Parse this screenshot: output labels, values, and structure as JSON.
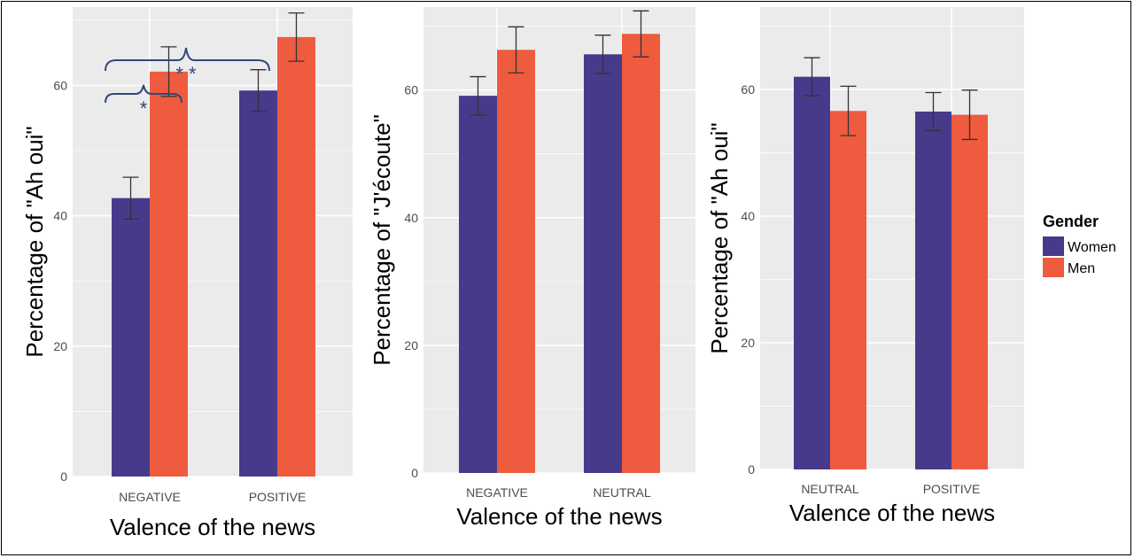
{
  "colors": {
    "women": "#473a8b",
    "men": "#ee5b3f",
    "panel_bg": "#ebebeb",
    "grid": "#ffffff",
    "bracket": "#2e4a7b",
    "text": "#4d4d4d"
  },
  "legend": {
    "title": "Gender",
    "items": [
      {
        "label": "Women",
        "color": "#473a8b"
      },
      {
        "label": "Men",
        "color": "#ee5b3f"
      }
    ]
  },
  "chart_data": [
    {
      "type": "bar",
      "categories": [
        "NEGATIVE",
        "POSITIVE"
      ],
      "series": [
        {
          "name": "Women",
          "values": [
            42.7,
            59.2
          ],
          "err": [
            3.2,
            3.2
          ]
        },
        {
          "name": "Men",
          "values": [
            62.1,
            67.4
          ],
          "err": [
            3.8,
            3.7
          ]
        }
      ],
      "ylabel": "Percentage of \"Ah oui\"",
      "xlabel": "Valence of the news",
      "ylim": [
        0,
        72
      ],
      "yticks": [
        0,
        20,
        40,
        60
      ],
      "grid": true,
      "annotations": [
        "*",
        "* *"
      ]
    },
    {
      "type": "bar",
      "categories": [
        "NEGATIVE",
        "NEUTRAL"
      ],
      "series": [
        {
          "name": "Women",
          "values": [
            59.1,
            65.6
          ],
          "err": [
            3.0,
            3.0
          ]
        },
        {
          "name": "Men",
          "values": [
            66.3,
            68.8
          ],
          "err": [
            3.6,
            3.6
          ]
        }
      ],
      "ylabel": "Percentage of \"J'écoute\"",
      "xlabel": "Valence of the news",
      "ylim": [
        0,
        73
      ],
      "yticks": [
        0,
        20,
        40,
        60
      ],
      "grid": true
    },
    {
      "type": "bar",
      "categories": [
        "NEUTRAL",
        "POSITIVE"
      ],
      "series": [
        {
          "name": "Women",
          "values": [
            62.0,
            56.5
          ],
          "err": [
            3.0,
            3.0
          ]
        },
        {
          "name": "Men",
          "values": [
            56.6,
            56.0
          ],
          "err": [
            3.9,
            3.9
          ]
        }
      ],
      "ylabel": "Percentage of \"Ah oui\"",
      "xlabel": "Valence of the news",
      "ylim": [
        0,
        73
      ],
      "yticks": [
        0,
        20,
        40,
        60
      ],
      "grid": true
    }
  ]
}
